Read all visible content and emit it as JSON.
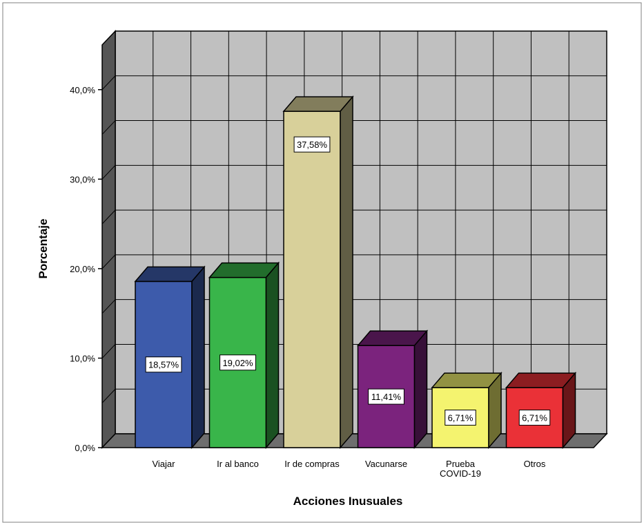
{
  "chart_data": {
    "type": "bar",
    "title": "",
    "xlabel": "Acciones Inusuales",
    "ylabel": "Porcentaje",
    "ylim": [
      0,
      45
    ],
    "yticks": [
      0,
      10,
      20,
      30,
      40
    ],
    "ytick_labels": [
      "0,0%",
      "10,0%",
      "20,0%",
      "30,0%",
      "40,0%"
    ],
    "grid": true,
    "legend": "none",
    "categories": [
      [
        "Viajar"
      ],
      [
        "Ir al banco"
      ],
      [
        "Ir de compras"
      ],
      [
        "Vacunarse"
      ],
      [
        "Prueba",
        "COVID-19"
      ],
      [
        "Otros"
      ]
    ],
    "values": [
      18.57,
      19.02,
      37.58,
      11.41,
      6.71,
      6.71
    ],
    "value_labels": [
      "18,57%",
      "19,02%",
      "37,58%",
      "11,41%",
      "6,71%",
      "6,71%"
    ],
    "colors": [
      "#3d5bab",
      "#39b54a",
      "#d8d09a",
      "#7b237d",
      "#f4f36f",
      "#ea3137"
    ]
  }
}
